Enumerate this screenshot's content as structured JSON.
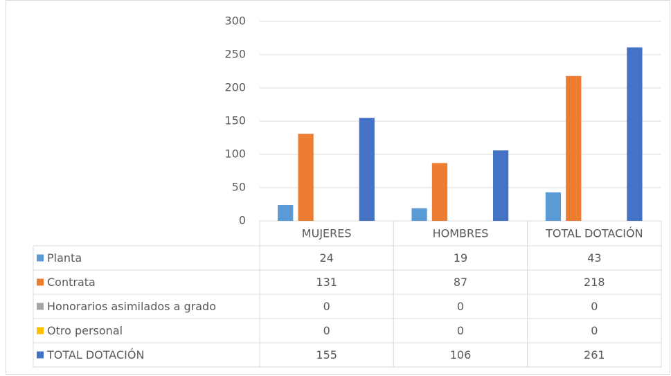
{
  "chart_data": {
    "type": "bar",
    "categories": [
      "MUJERES",
      "HOMBRES",
      "TOTAL DOTACIÓN"
    ],
    "series": [
      {
        "name": "Planta",
        "color": "#5b9bd5",
        "values": [
          24,
          19,
          43
        ]
      },
      {
        "name": "Contrata",
        "color": "#ed7d31",
        "values": [
          131,
          87,
          218
        ]
      },
      {
        "name": "Honorarios asimilados a grado",
        "color": "#a5a5a5",
        "values": [
          0,
          0,
          0
        ]
      },
      {
        "name": "Otro personal",
        "color": "#ffc000",
        "values": [
          0,
          0,
          0
        ]
      },
      {
        "name": "TOTAL DOTACIÓN",
        "color": "#4472c4",
        "values": [
          155,
          106,
          261
        ]
      }
    ],
    "ylim": [
      0,
      300
    ],
    "yticks": [
      0,
      50,
      100,
      150,
      200,
      250,
      300
    ],
    "grid": true,
    "legend": "table"
  }
}
